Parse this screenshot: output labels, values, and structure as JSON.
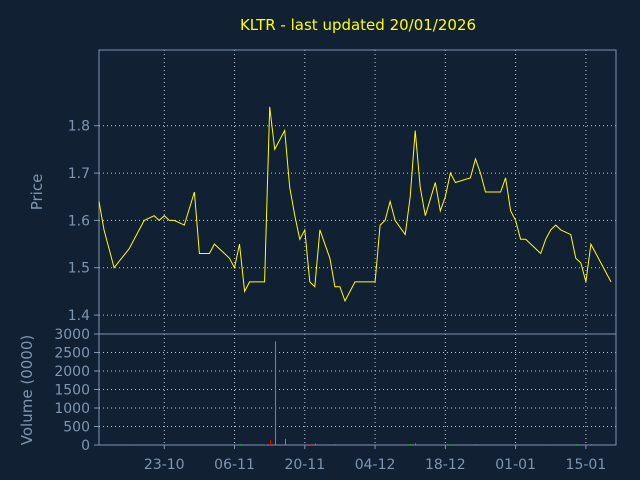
{
  "colors": {
    "background": "#112033",
    "axis": "#7f96b2",
    "grid": "#c0c8d4",
    "price_line": "#ffff00",
    "volume_up": "#00e000",
    "volume_down": "#e00000",
    "title": "#ffff00"
  },
  "chart_data": [
    {
      "type": "line",
      "title": "KLTR - last updated 20/01/2026",
      "ylabel": "Price",
      "xlabel": "",
      "ylim": [
        1.36,
        1.96
      ],
      "yticks": [
        1.4,
        1.5,
        1.6,
        1.7,
        1.8
      ],
      "ytick_labels": [
        "1.4",
        "1.5",
        "1.6",
        "1.7",
        "1.8"
      ],
      "xlim": [
        "2025-10-10",
        "2026-01-21"
      ],
      "xticks": [
        "2025-10-23",
        "2025-11-06",
        "2025-11-20",
        "2025-12-04",
        "2025-12-18",
        "2026-01-01",
        "2026-01-15"
      ],
      "xtick_labels": [
        "23-10",
        "06-11",
        "20-11",
        "04-12",
        "18-12",
        "01-01",
        "15-01"
      ],
      "grid": true,
      "series": [
        {
          "x": [
            "2025-10-10",
            "2025-10-11",
            "2025-10-13",
            "2025-10-16",
            "2025-10-19",
            "2025-10-21",
            "2025-10-22",
            "2025-10-23",
            "2025-10-24",
            "2025-10-25",
            "2025-10-27",
            "2025-10-29",
            "2025-10-30",
            "2025-10-31",
            "2025-11-01",
            "2025-11-02",
            "2025-11-04",
            "2025-11-05",
            "2025-11-06",
            "2025-11-07",
            "2025-11-08",
            "2025-11-09",
            "2025-11-10",
            "2025-11-11",
            "2025-11-12",
            "2025-11-13",
            "2025-11-14",
            "2025-11-16",
            "2025-11-17",
            "2025-11-18",
            "2025-11-19",
            "2025-11-20",
            "2025-11-21",
            "2025-11-22",
            "2025-11-23",
            "2025-11-25",
            "2025-11-26",
            "2025-11-27",
            "2025-11-28",
            "2025-11-30",
            "2025-12-01",
            "2025-12-02",
            "2025-12-03",
            "2025-12-04",
            "2025-12-05",
            "2025-12-06",
            "2025-12-07",
            "2025-12-08",
            "2025-12-10",
            "2025-12-11",
            "2025-12-12",
            "2025-12-13",
            "2025-12-14",
            "2025-12-16",
            "2025-12-17",
            "2025-12-18",
            "2025-12-19",
            "2025-12-20",
            "2025-12-23",
            "2025-12-24",
            "2025-12-25",
            "2025-12-26",
            "2025-12-27",
            "2025-12-29",
            "2025-12-30",
            "2025-12-31",
            "2026-01-01",
            "2026-01-02",
            "2026-01-03",
            "2026-01-06",
            "2026-01-07",
            "2026-01-08",
            "2026-01-09",
            "2026-01-10",
            "2026-01-12",
            "2026-01-13",
            "2026-01-14",
            "2026-01-15",
            "2026-01-16",
            "2026-01-20"
          ],
          "values": [
            1.64,
            1.58,
            1.5,
            1.54,
            1.6,
            1.61,
            1.6,
            1.61,
            1.6,
            1.6,
            1.59,
            1.66,
            1.53,
            1.53,
            1.53,
            1.55,
            1.53,
            1.52,
            1.5,
            1.55,
            1.45,
            1.47,
            1.47,
            1.47,
            1.47,
            1.84,
            1.75,
            1.79,
            1.67,
            1.61,
            1.56,
            1.58,
            1.47,
            1.46,
            1.58,
            1.52,
            1.46,
            1.46,
            1.43,
            1.47,
            1.47,
            1.47,
            1.47,
            1.47,
            1.59,
            1.6,
            1.64,
            1.6,
            1.57,
            1.65,
            1.79,
            1.67,
            1.61,
            1.68,
            1.62,
            1.65,
            1.7,
            1.68,
            1.69,
            1.73,
            1.7,
            1.66,
            1.66,
            1.66,
            1.69,
            1.62,
            1.6,
            1.56,
            1.56,
            1.53,
            1.56,
            1.58,
            1.59,
            1.58,
            1.57,
            1.52,
            1.51,
            1.47,
            1.55,
            1.47
          ]
        }
      ]
    },
    {
      "type": "bar",
      "ylabel": "Volume (0000)",
      "xlabel": "",
      "ylim": [
        0,
        3000
      ],
      "yticks": [
        0,
        500,
        1000,
        1500,
        2000,
        2500,
        3000
      ],
      "ytick_labels": [
        "0",
        "500",
        "1000",
        "1500",
        "2000",
        "2500",
        "3000"
      ],
      "xlim": [
        "2025-10-10",
        "2026-01-21"
      ],
      "grid": true,
      "series": [
        {
          "x": [
            "2025-10-16",
            "2025-10-22",
            "2025-10-30",
            "2025-11-06",
            "2025-11-07",
            "2025-11-12",
            "2025-11-13",
            "2025-11-14",
            "2025-11-16",
            "2025-11-21",
            "2025-11-22",
            "2025-11-26",
            "2025-12-04",
            "2025-12-11",
            "2025-12-12",
            "2025-12-19",
            "2025-12-24",
            "2026-01-02",
            "2026-01-08",
            "2026-01-13",
            "2026-01-16"
          ],
          "values": [
            15,
            10,
            10,
            30,
            20,
            25,
            140,
            2800,
            170,
            35,
            40,
            20,
            10,
            25,
            45,
            15,
            20,
            10,
            15,
            20,
            25
          ],
          "direction": [
            "up",
            "up",
            "up",
            "down",
            "up",
            "down",
            "down",
            "up",
            "up",
            "down",
            "up",
            "up",
            "up",
            "up",
            "up",
            "up",
            "up",
            "up",
            "up",
            "up",
            "up"
          ]
        }
      ]
    }
  ]
}
